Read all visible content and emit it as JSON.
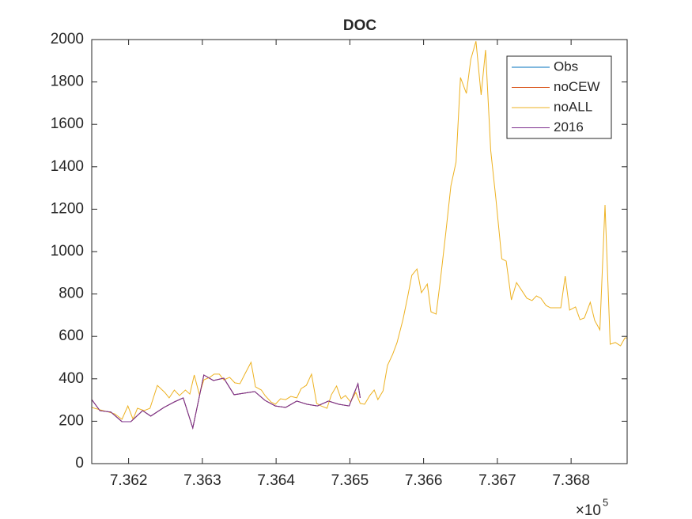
{
  "chart_data": {
    "type": "line",
    "title": "DOC",
    "xlim": [
      736150,
      736876
    ],
    "xticks": [
      {
        "value": 736200,
        "label": "7.362"
      },
      {
        "value": 736300,
        "label": "7.363"
      },
      {
        "value": 736400,
        "label": "7.364"
      },
      {
        "value": 736500,
        "label": "7.365"
      },
      {
        "value": 736600,
        "label": "7.366"
      },
      {
        "value": 736700,
        "label": "7.367"
      },
      {
        "value": 736800,
        "label": "7.368"
      }
    ],
    "x_multiplier": {
      "base": "×10",
      "exponent": "5"
    },
    "ylim": [
      0,
      2000
    ],
    "yticks": [
      0,
      200,
      400,
      600,
      800,
      1000,
      1200,
      1400,
      1600,
      1800,
      2000
    ],
    "grid": false,
    "legend": "top-right",
    "series": [
      {
        "name": "Obs",
        "color": "#0072BD",
        "x": [
          736150,
          736161,
          736176,
          736191,
          736203,
          736219,
          736230,
          736248,
          736262,
          736274,
          736287,
          736302,
          736315,
          736329,
          736343,
          736371,
          736385,
          736399,
          736413,
          736428,
          736442,
          736456,
          736471,
          736485,
          736499,
          736511,
          736514
        ],
        "values": [
          302,
          250,
          243,
          198,
          198,
          250,
          224,
          265,
          291,
          310,
          168,
          418,
          392,
          403,
          325,
          340,
          298,
          272,
          265,
          295,
          280,
          272,
          295,
          280,
          272,
          377,
          310
        ]
      },
      {
        "name": "noCEW",
        "color": "#D95319",
        "x": [
          736150,
          736161,
          736176,
          736191,
          736203,
          736219,
          736230,
          736248,
          736262,
          736274,
          736287,
          736302,
          736315,
          736329,
          736343,
          736371,
          736385,
          736399,
          736413,
          736428,
          736442,
          736456,
          736471,
          736485,
          736499,
          736511,
          736514
        ],
        "values": [
          302,
          250,
          243,
          198,
          198,
          250,
          224,
          265,
          291,
          310,
          168,
          418,
          392,
          403,
          325,
          340,
          298,
          272,
          265,
          295,
          280,
          272,
          295,
          280,
          272,
          377,
          310
        ]
      },
      {
        "name": "noALL",
        "color": "#EDB120",
        "x": [
          736150,
          736161,
          736170,
          736181,
          736191,
          736199,
          736206,
          736212,
          736221,
          736229,
          736239,
          736249,
          736255,
          736262,
          736269,
          736277,
          736283,
          736289,
          736296,
          736302,
          736310,
          736316,
          736323,
          736329,
          736337,
          736344,
          736351,
          736358,
          736366,
          736372,
          736380,
          736385,
          736393,
          736399,
          736406,
          736413,
          736420,
          736428,
          736434,
          736441,
          736448,
          736455,
          736461,
          736469,
          736475,
          736482,
          736488,
          736494,
          736501,
          736508,
          736514,
          736520,
          736527,
          736533,
          736538,
          736545,
          736551,
          736558,
          736564,
          736572,
          736578,
          736584,
          736591,
          736597,
          736605,
          736610,
          736617,
          736623,
          736630,
          736637,
          736644,
          736650,
          736658,
          736664,
          736671,
          736678,
          736684,
          736691,
          736698,
          736706,
          736712,
          736719,
          736726,
          736733,
          736740,
          736747,
          736753,
          736759,
          736766,
          736772,
          736780,
          736786,
          736792,
          736798,
          736806,
          736812,
          736818,
          736826,
          736832,
          736839,
          736846,
          736853,
          736860,
          736867,
          736873,
          736876
        ],
        "values": [
          265,
          254,
          246,
          235,
          209,
          272,
          209,
          261,
          250,
          261,
          369,
          336,
          310,
          347,
          321,
          347,
          328,
          418,
          325,
          395,
          407,
          422,
          422,
          395,
          407,
          381,
          377,
          425,
          478,
          362,
          347,
          321,
          291,
          280,
          306,
          302,
          317,
          310,
          354,
          369,
          422,
          284,
          272,
          261,
          325,
          366,
          306,
          321,
          291,
          336,
          284,
          280,
          321,
          347,
          302,
          343,
          463,
          515,
          571,
          679,
          780,
          888,
          918,
          806,
          847,
          716,
          705,
          873,
          1086,
          1310,
          1422,
          1821,
          1746,
          1907,
          1992,
          1739,
          1951,
          1477,
          1250,
          966,
          955,
          772,
          854,
          817,
          780,
          769,
          791,
          780,
          746,
          735,
          735,
          735,
          884,
          724,
          739,
          679,
          687,
          761,
          675,
          631,
          1220,
          563,
          571,
          556,
          593,
          593
        ]
      },
      {
        "name": "2016",
        "color": "#7E2F8E",
        "x": [
          736150,
          736161,
          736176,
          736191,
          736203,
          736219,
          736230,
          736248,
          736262,
          736274,
          736287,
          736302,
          736315,
          736329,
          736343,
          736371,
          736385,
          736399,
          736413,
          736428,
          736442,
          736456,
          736471,
          736485,
          736499,
          736511,
          736514
        ],
        "values": [
          302,
          250,
          243,
          198,
          198,
          250,
          224,
          265,
          291,
          310,
          168,
          418,
          392,
          403,
          325,
          340,
          298,
          272,
          265,
          295,
          280,
          272,
          295,
          280,
          272,
          377,
          310
        ]
      }
    ]
  }
}
